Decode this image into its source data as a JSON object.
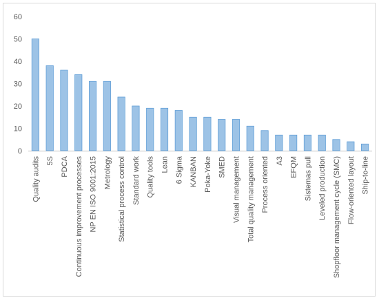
{
  "chart_data": {
    "type": "bar",
    "title": "",
    "xlabel": "",
    "ylabel": "",
    "ylim": [
      0,
      60
    ],
    "yticks": [
      0,
      10,
      20,
      30,
      40,
      50,
      60
    ],
    "grid": false,
    "legend": "none",
    "bar_color": "#9dc3e6",
    "bar_edge_color": "#5b9bd5",
    "axis_color": "#bfbfbf",
    "categories": [
      "Quality audits",
      "5S",
      "PDCA",
      "Continuous improvement processes",
      "NP EN ISO 9001:2015",
      "Metrology",
      "Statistical process control",
      "Standard work",
      "Quality tools",
      "Lean",
      "6 Sigma",
      "KANBAN",
      "Poka-Yoke",
      "SMED",
      "Visual management",
      "Total quality management",
      "Process oriented",
      "A3",
      "EFQM",
      "Sistemas pull",
      "Leveled production",
      "Shopfloor management cycle (SMC)",
      "Flow-oriented layout",
      "Ship-to-line"
    ],
    "values": [
      50,
      38,
      36,
      34,
      31,
      31,
      24,
      20,
      19,
      19,
      18,
      15,
      15,
      14,
      14,
      11,
      9,
      7,
      7,
      7,
      7,
      5,
      4,
      3
    ]
  }
}
